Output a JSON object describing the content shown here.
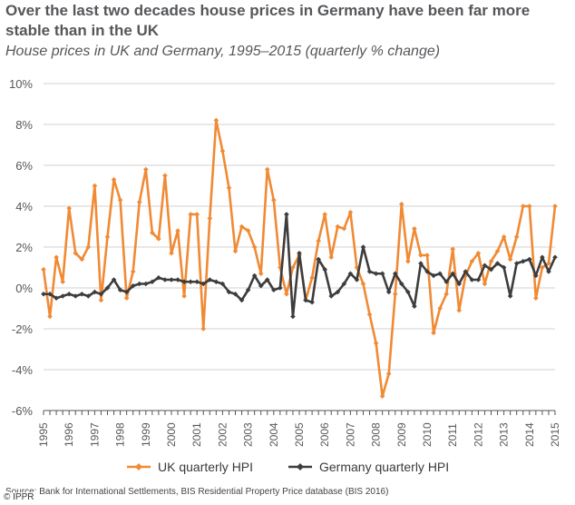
{
  "header": {
    "title": "Over the last two decades house prices in Germany have been far more stable than in the UK",
    "subtitle": "House prices in UK and Germany, 1995–2015 (quarterly % change)"
  },
  "footer": {
    "source": "Source: Bank for International Settlements, BIS Residential Property Price database (BIS 2016)",
    "credit": "© IPPR"
  },
  "chart_data": {
    "type": "line",
    "title": "House prices in UK and Germany, 1995–2015 (quarterly % change)",
    "xlabel": "",
    "ylabel": "",
    "ylim": [
      -6,
      10
    ],
    "yticks": [
      "-6%",
      "-4%",
      "-2%",
      "0%",
      "2%",
      "4%",
      "6%",
      "8%",
      "10%"
    ],
    "ytick_values": [
      -6,
      -4,
      -2,
      0,
      2,
      4,
      6,
      8,
      10
    ],
    "xticks": [
      "1995",
      "1996",
      "1997",
      "1998",
      "1999",
      "2000",
      "2001",
      "2002",
      "2003",
      "2004",
      "2005",
      "2006",
      "2007",
      "2008",
      "2009",
      "2010",
      "2011",
      "2012",
      "2013",
      "2014",
      "2015"
    ],
    "quarters": 81,
    "grid": true,
    "legend": "bottom",
    "colors": {
      "uk": "#f08a34",
      "germany": "#3d3d3d",
      "grid": "#d0d0d0",
      "axis": "#555555"
    },
    "series": [
      {
        "name": "UK quarterly HPI",
        "marker": "diamond",
        "values": [
          0.9,
          -1.4,
          1.5,
          0.3,
          3.9,
          1.7,
          1.4,
          2.0,
          5.0,
          -0.6,
          2.5,
          5.3,
          4.3,
          -0.5,
          0.8,
          4.2,
          5.8,
          2.7,
          2.4,
          5.5,
          1.7,
          2.8,
          -0.4,
          3.6,
          3.6,
          -2.0,
          3.4,
          8.2,
          6.7,
          4.9,
          1.8,
          3.0,
          2.8,
          2.0,
          0.7,
          5.8,
          4.3,
          1.0,
          -0.3,
          1.0,
          1.6,
          -0.6,
          0.5,
          2.3,
          3.6,
          1.5,
          3.0,
          2.9,
          3.7,
          1.0,
          0.2,
          -1.3,
          -2.7,
          -5.3,
          -4.2,
          -0.3,
          4.1,
          1.3,
          2.9,
          1.6,
          1.6,
          -2.2,
          -1.0,
          -0.3,
          1.9,
          -1.1,
          0.6,
          1.3,
          1.7,
          0.2,
          1.3,
          1.8,
          2.5,
          1.4,
          2.5,
          4.0,
          4.0,
          -0.5,
          1.0,
          1.2,
          4.0
        ]
      },
      {
        "name": "Germany quarterly HPI",
        "marker": "diamond",
        "values": [
          -0.3,
          -0.3,
          -0.5,
          -0.4,
          -0.3,
          -0.4,
          -0.3,
          -0.4,
          -0.2,
          -0.3,
          0.0,
          0.4,
          -0.1,
          -0.2,
          0.1,
          0.2,
          0.2,
          0.3,
          0.5,
          0.4,
          0.4,
          0.4,
          0.3,
          0.3,
          0.3,
          0.2,
          0.4,
          0.3,
          0.2,
          -0.2,
          -0.3,
          -0.6,
          -0.1,
          0.6,
          0.1,
          0.4,
          -0.1,
          0.0,
          3.6,
          -1.4,
          1.7,
          -0.6,
          -0.7,
          1.4,
          0.9,
          -0.4,
          -0.2,
          0.2,
          0.7,
          0.4,
          2.0,
          0.8,
          0.7,
          0.7,
          -0.2,
          0.7,
          0.2,
          -0.2,
          -0.9,
          1.2,
          0.8,
          0.6,
          0.7,
          0.3,
          0.7,
          0.2,
          0.8,
          0.4,
          0.4,
          1.1,
          0.9,
          1.2,
          1.0,
          -0.4,
          1.2,
          1.3,
          1.4,
          0.6,
          1.5,
          0.8,
          1.5
        ]
      }
    ]
  }
}
